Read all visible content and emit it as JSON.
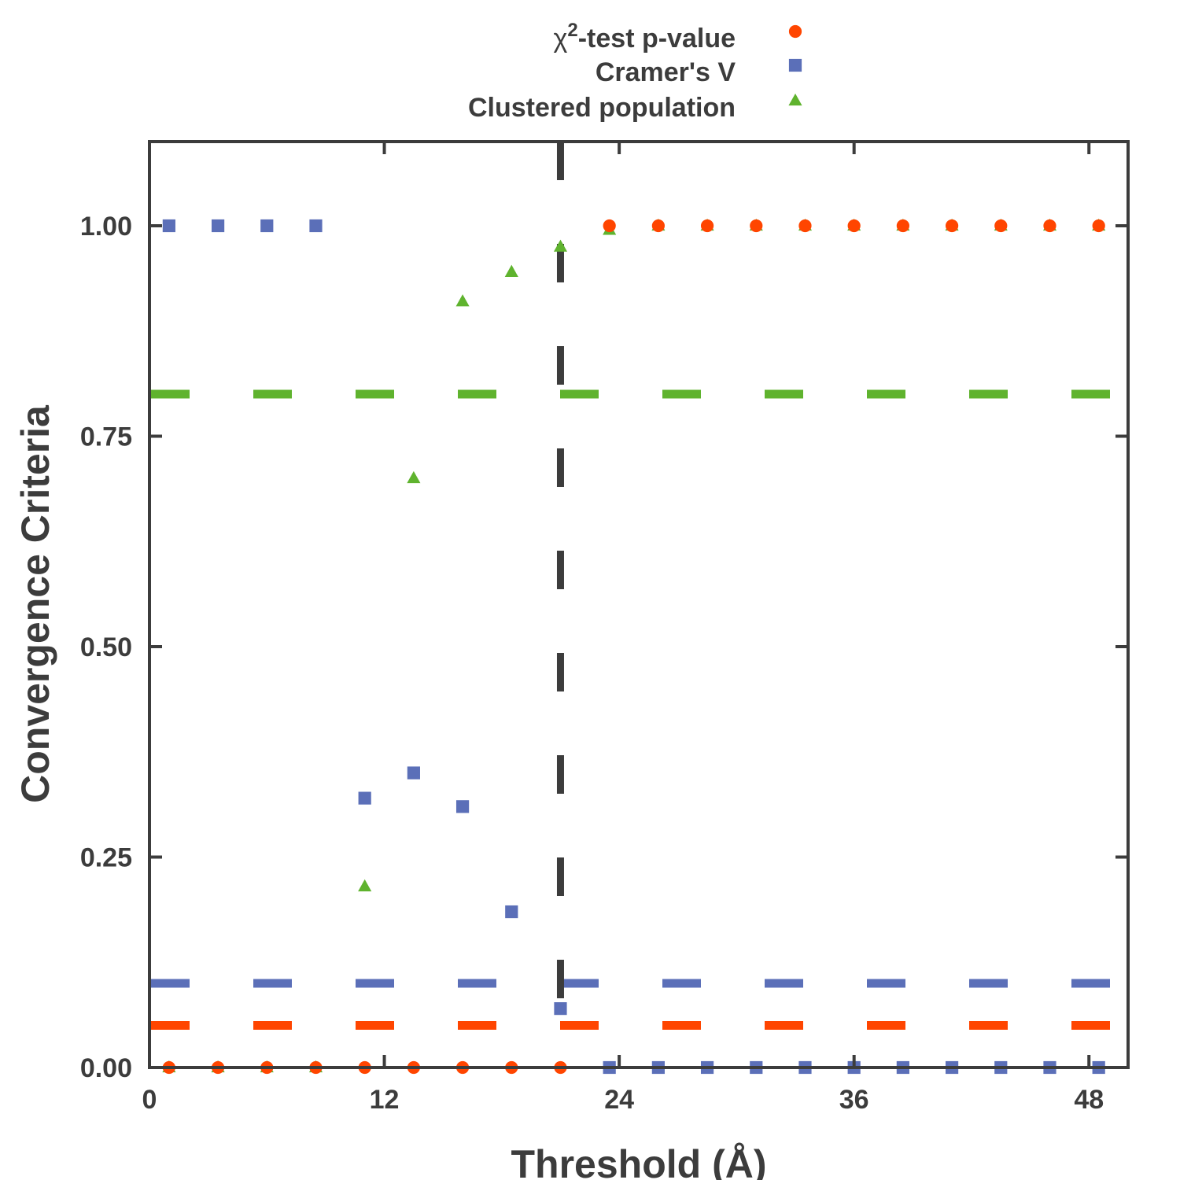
{
  "chart_data": {
    "type": "scatter",
    "xlabel": "Threshold (Å)",
    "ylabel": "Convergence Criteria",
    "xlim": [
      0,
      50
    ],
    "ylim": [
      0,
      1.1
    ],
    "x_ticks": [
      0,
      12,
      24,
      36,
      48
    ],
    "x_tick_labels": [
      "0",
      "12",
      "24",
      "36",
      "48"
    ],
    "y_ticks": [
      0,
      0.25,
      0.5,
      0.75,
      1.0
    ],
    "y_tick_labels": [
      "0.00",
      "0.25",
      "0.50",
      "0.75",
      "1.00"
    ],
    "grid": false,
    "legend_position": "top",
    "x": [
      1,
      3.5,
      6,
      8.5,
      11,
      13.5,
      16,
      18.5,
      21,
      23.5,
      26,
      28.5,
      31,
      33.5,
      36,
      38.5,
      41,
      43.5,
      46,
      48.5
    ],
    "series": [
      {
        "name_prefix": "χ",
        "name_superscript": "2",
        "name_suffix": "-test p-value",
        "marker": "circle",
        "color": "#ff4500",
        "values": [
          0,
          0,
          0,
          0,
          0,
          0,
          0,
          0,
          0,
          1,
          1,
          1,
          1,
          1,
          1,
          1,
          1,
          1,
          1,
          1
        ]
      },
      {
        "name": "Cramer's V",
        "marker": "square",
        "color": "#5b6fb8",
        "values": [
          1,
          1,
          1,
          1,
          0.32,
          0.35,
          0.31,
          0.185,
          0.07,
          0,
          0,
          0,
          0,
          0,
          0,
          0,
          0,
          0,
          0,
          0
        ]
      },
      {
        "name": "Clustered population",
        "marker": "triangle",
        "color": "#5fb32e",
        "values": [
          0,
          0,
          0,
          0,
          0.215,
          0.7,
          0.91,
          0.945,
          0.975,
          0.995,
          1,
          1,
          1,
          1,
          1,
          1,
          1,
          1,
          1,
          1
        ]
      }
    ],
    "reference_lines": [
      {
        "orientation": "horizontal",
        "value": 0.8,
        "color": "#5fb32e",
        "style": "dashed"
      },
      {
        "orientation": "horizontal",
        "value": 0.1,
        "color": "#5b6fb8",
        "style": "dashed"
      },
      {
        "orientation": "horizontal",
        "value": 0.05,
        "color": "#ff4500",
        "style": "dashed"
      },
      {
        "orientation": "vertical",
        "value": 21,
        "color": "#3c3c3c",
        "style": "dashed"
      }
    ]
  }
}
